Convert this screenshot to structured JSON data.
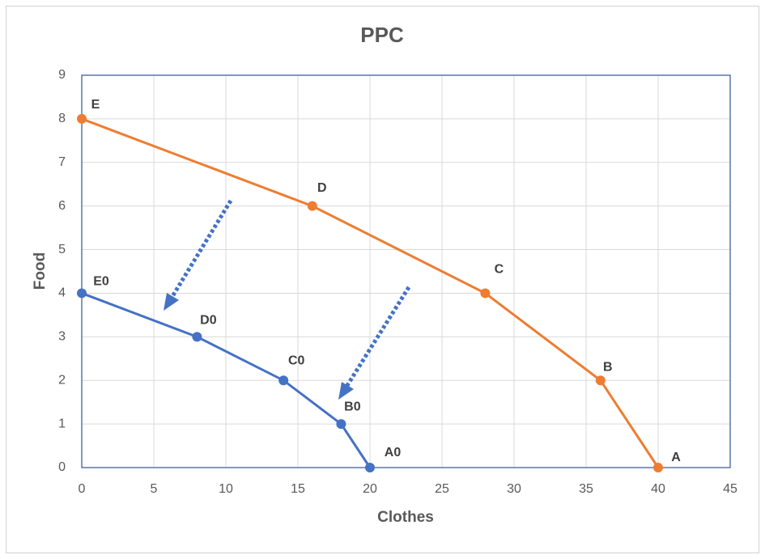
{
  "chart_data": {
    "type": "line",
    "title": "PPC",
    "x_label": "Clothes",
    "y_label": "Food",
    "series": [
      {
        "color": "#ed7d31",
        "x": [
          0,
          16,
          28,
          36,
          40
        ],
        "values": [
          8,
          6,
          4,
          2,
          0
        ],
        "point_labels": [
          "E",
          "D",
          "C",
          "B",
          "A"
        ]
      },
      {
        "color": "#4472c4",
        "x": [
          0,
          8,
          14,
          18,
          20
        ],
        "values": [
          4,
          3,
          2,
          1,
          0
        ],
        "point_labels": [
          "E0",
          "D0",
          "C0",
          "B0",
          "A0"
        ]
      }
    ],
    "xlim": [
      0,
      45
    ],
    "xticks": [
      0,
      5,
      10,
      15,
      20,
      25,
      30,
      35,
      40,
      45
    ],
    "ylim": [
      0,
      9
    ],
    "yticks": [
      0,
      1,
      2,
      3,
      4,
      5,
      6,
      7,
      8,
      9
    ],
    "grid": true
  }
}
